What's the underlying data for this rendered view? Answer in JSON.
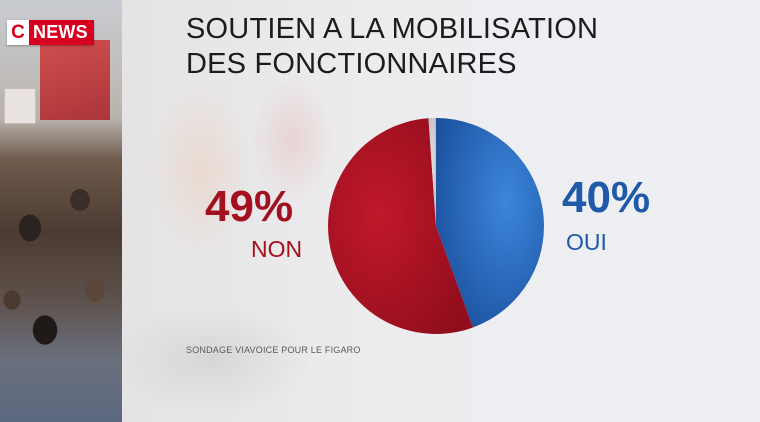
{
  "header": {
    "logo_c": "C",
    "logo_news": "NEWS"
  },
  "title_lines": [
    "SOUTIEN A LA MOBILISATION",
    "DES FONCTIONNAIRES"
  ],
  "source": "SONDAGE VIAVOICE POUR LE FIGARO",
  "colors": {
    "brand_red": "#d8001f",
    "non_red": "#a3101f",
    "oui_blue": "#1f5aa8",
    "other_grey": "#c9c9cc"
  },
  "chart_data": {
    "type": "pie",
    "title": "SOUTIEN A LA MOBILISATION DES FONCTIONNAIRES",
    "slices": [
      {
        "label": "OUI",
        "value": 40,
        "display": "40%",
        "color": "#1f5aa8"
      },
      {
        "label": "NON",
        "value": 49,
        "display": "49%",
        "color": "#a3101f"
      },
      {
        "label": "",
        "value": 1,
        "display": "",
        "color": "#c9c9cc"
      }
    ],
    "start": "12 o'clock",
    "direction": "clockwise",
    "legend": "none",
    "value_labels": "outside"
  }
}
